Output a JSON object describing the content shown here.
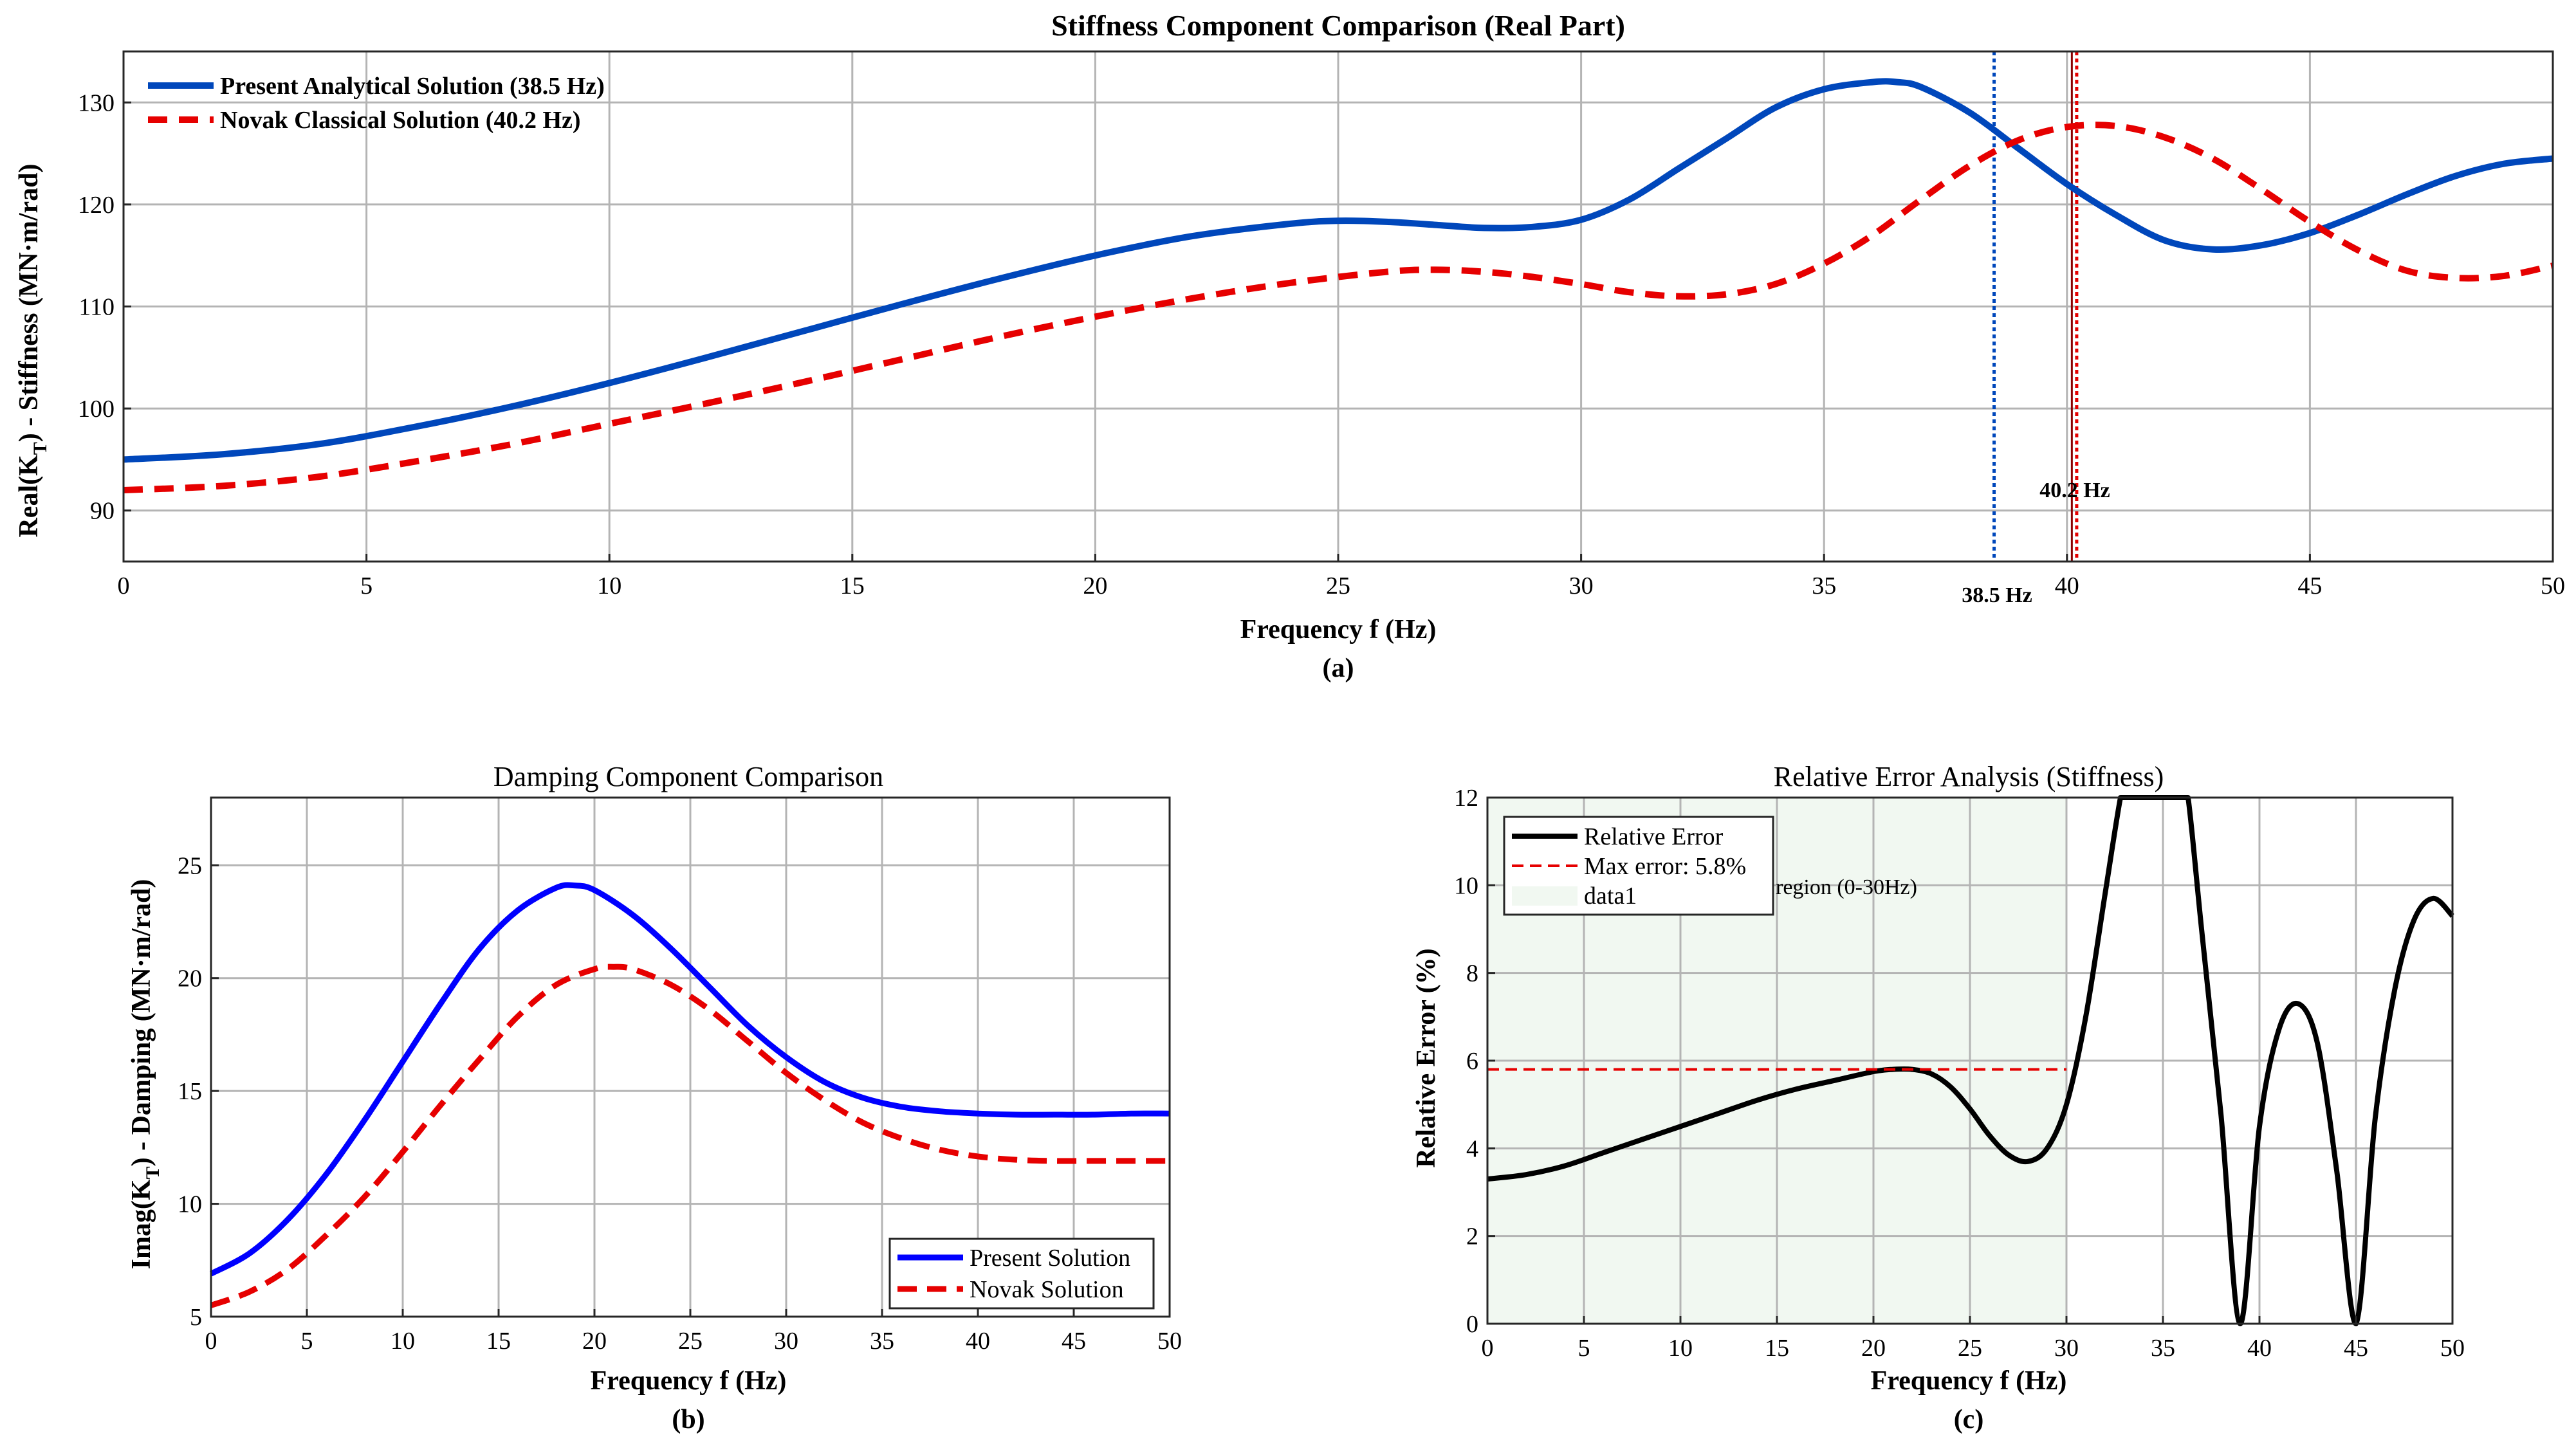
{
  "colors": {
    "present_a": "#0047BB",
    "present_b": "#0000FF",
    "novak": "#E60000",
    "error_line": "#000000",
    "region_fill": "#E6F2E6",
    "marker_blue": "#0047BB",
    "marker_red": "#E60000",
    "marker_dark_red": "#8B0000"
  },
  "chart_data": [
    {
      "id": "a",
      "type": "line",
      "title": "Stiffness Component Comparison (Real Part)",
      "xlabel": "Frequency f (Hz)",
      "ylabel": "Real(K_T) - Stiffness (MN·m/rad)",
      "ylabel_parts": [
        "Real(K",
        "T",
        ") - Stiffness (MN·m/rad)"
      ],
      "sublabel": "(a)",
      "xlim": [
        0,
        50
      ],
      "ylim": [
        85,
        135
      ],
      "xticks": [
        0,
        5,
        10,
        15,
        20,
        25,
        30,
        35,
        40,
        45,
        50
      ],
      "yticks": [
        90,
        100,
        110,
        120,
        130
      ],
      "grid": true,
      "legend_position": "top-left",
      "series": [
        {
          "name": "Present Analytical Solution (38.5 Hz)",
          "style": "solid",
          "x": [
            0,
            2,
            4,
            6,
            8,
            10,
            12,
            14,
            16,
            18,
            20,
            22,
            24,
            25,
            26,
            27,
            28,
            29,
            30,
            31,
            32,
            33,
            34,
            35,
            36,
            36.5,
            37,
            38,
            39,
            40,
            41,
            42,
            43,
            44,
            45,
            46,
            47,
            48,
            49,
            50
          ],
          "y": [
            95,
            95.5,
            96.5,
            98.2,
            100.2,
            102.5,
            105,
            107.6,
            110.2,
            112.7,
            115,
            116.9,
            118.1,
            118.4,
            118.3,
            118,
            117.7,
            117.8,
            118.5,
            120.5,
            123.5,
            126.5,
            129.5,
            131.3,
            132,
            132,
            131.5,
            129,
            125.5,
            122,
            119,
            116.5,
            115.6,
            116,
            117.2,
            119,
            121,
            122.8,
            124,
            124.5
          ]
        },
        {
          "name": "Novak Classical Solution (40.2 Hz)",
          "style": "dashed",
          "x": [
            0,
            2,
            4,
            6,
            8,
            10,
            12,
            14,
            16,
            18,
            20,
            22,
            24,
            26,
            27,
            28,
            29,
            30,
            31,
            32,
            33,
            34,
            35,
            36,
            37,
            38,
            39,
            40,
            41,
            42,
            43,
            44,
            45,
            46,
            47,
            48,
            49,
            50
          ],
          "y": [
            92,
            92.4,
            93.3,
            94.8,
            96.5,
            98.5,
            100.5,
            102.6,
            104.8,
            107,
            109,
            110.8,
            112.3,
            113.4,
            113.6,
            113.4,
            112.9,
            112.2,
            111.4,
            111,
            111.2,
            112.2,
            114.2,
            117,
            120.5,
            123.8,
            126.3,
            127.6,
            127.7,
            126.6,
            124.5,
            121.5,
            118.3,
            115.5,
            113.5,
            112.8,
            113,
            114
          ]
        }
      ],
      "markers": [
        {
          "x": 38.5,
          "label": "38.5 Hz",
          "style": "dotted",
          "color_key": "marker_blue"
        },
        {
          "x": 40.2,
          "label": "40.2 Hz",
          "style": "dotted",
          "color_key": "marker_red"
        },
        {
          "x": 40.1,
          "label": "",
          "style": "solid",
          "color_key": "marker_dark_red"
        }
      ]
    },
    {
      "id": "b",
      "type": "line",
      "title": "Damping Component Comparison",
      "xlabel": "Frequency f (Hz)",
      "ylabel": "Imag(K_T) - Damping (MN·m/rad)",
      "ylabel_parts": [
        "Imag(K",
        "T",
        ") - Damping (MN·m/rad)"
      ],
      "sublabel": "(b)",
      "xlim": [
        0,
        50
      ],
      "ylim": [
        5,
        28
      ],
      "xticks": [
        0,
        5,
        10,
        15,
        20,
        25,
        30,
        35,
        40,
        45,
        50
      ],
      "yticks": [
        5,
        10,
        15,
        20,
        25
      ],
      "grid": true,
      "legend_position": "bottom-right",
      "series": [
        {
          "name": "Present Solution",
          "style": "solid",
          "x": [
            0,
            2,
            4,
            6,
            8,
            10,
            12,
            14,
            16,
            18,
            19,
            20,
            22,
            24,
            26,
            28,
            30,
            32,
            34,
            36,
            38,
            40,
            42,
            44,
            46,
            48,
            50
          ],
          "y": [
            6.9,
            7.8,
            9.3,
            11.3,
            13.7,
            16.3,
            18.9,
            21.3,
            23,
            24,
            24.1,
            23.9,
            22.8,
            21.3,
            19.6,
            17.9,
            16.5,
            15.4,
            14.7,
            14.3,
            14.1,
            14,
            13.95,
            13.95,
            13.95,
            14,
            14
          ]
        },
        {
          "name": "Novak Solution",
          "style": "dashed",
          "x": [
            0,
            2,
            4,
            6,
            8,
            10,
            12,
            14,
            16,
            18,
            20,
            21,
            22,
            24,
            26,
            28,
            30,
            32,
            34,
            36,
            38,
            40,
            42,
            44,
            46,
            48,
            50
          ],
          "y": [
            5.5,
            6.1,
            7.1,
            8.6,
            10.3,
            12.3,
            14.4,
            16.4,
            18.3,
            19.7,
            20.4,
            20.5,
            20.4,
            19.7,
            18.6,
            17.2,
            15.8,
            14.6,
            13.6,
            12.9,
            12.4,
            12.1,
            11.95,
            11.9,
            11.9,
            11.9,
            11.9
          ]
        }
      ]
    },
    {
      "id": "c",
      "type": "line",
      "title": "Relative Error Analysis (Stiffness)",
      "xlabel": "Frequency f (Hz)",
      "ylabel": "Relative Error (%)",
      "sublabel": "(c)",
      "xlim": [
        0,
        50
      ],
      "ylim": [
        0,
        12
      ],
      "xticks": [
        0,
        5,
        10,
        15,
        20,
        25,
        30,
        35,
        40,
        45,
        50
      ],
      "yticks": [
        0,
        2,
        4,
        6,
        8,
        10,
        12
      ],
      "grid": true,
      "legend_position": "top-left",
      "region": {
        "x0": 0,
        "x1": 30,
        "text": "region (0-30Hz)"
      },
      "max_error_value": 5.8,
      "series": [
        {
          "name": "Relative Error",
          "style": "solid",
          "x": [
            0,
            2,
            4,
            6,
            8,
            10,
            12,
            14,
            16,
            18,
            20,
            21,
            22,
            23,
            24,
            25,
            26,
            27,
            28,
            29,
            30,
            31,
            32,
            32.8,
            33,
            34,
            35,
            36,
            36.3,
            37,
            38,
            39,
            40,
            41,
            42,
            43,
            44,
            45,
            46,
            47,
            48,
            49,
            50
          ],
          "y": [
            3.3,
            3.4,
            3.6,
            3.9,
            4.2,
            4.5,
            4.8,
            5.1,
            5.35,
            5.55,
            5.75,
            5.8,
            5.8,
            5.7,
            5.4,
            4.9,
            4.3,
            3.85,
            3.7,
            4,
            5,
            7,
            9.8,
            12,
            12,
            12,
            12,
            12,
            12,
            9,
            4.8,
            0,
            4.5,
            6.7,
            7.3,
            6.4,
            3.5,
            0,
            4.7,
            7.6,
            9.2,
            9.7,
            9.3
          ]
        },
        {
          "name": "Max error: 5.8%",
          "style": "dashed",
          "x": [
            0,
            30
          ],
          "y": [
            5.8,
            5.8
          ]
        },
        {
          "name": "data1",
          "style": "fill",
          "x": [
            0,
            30
          ],
          "y": [
            0,
            12
          ]
        }
      ]
    }
  ]
}
